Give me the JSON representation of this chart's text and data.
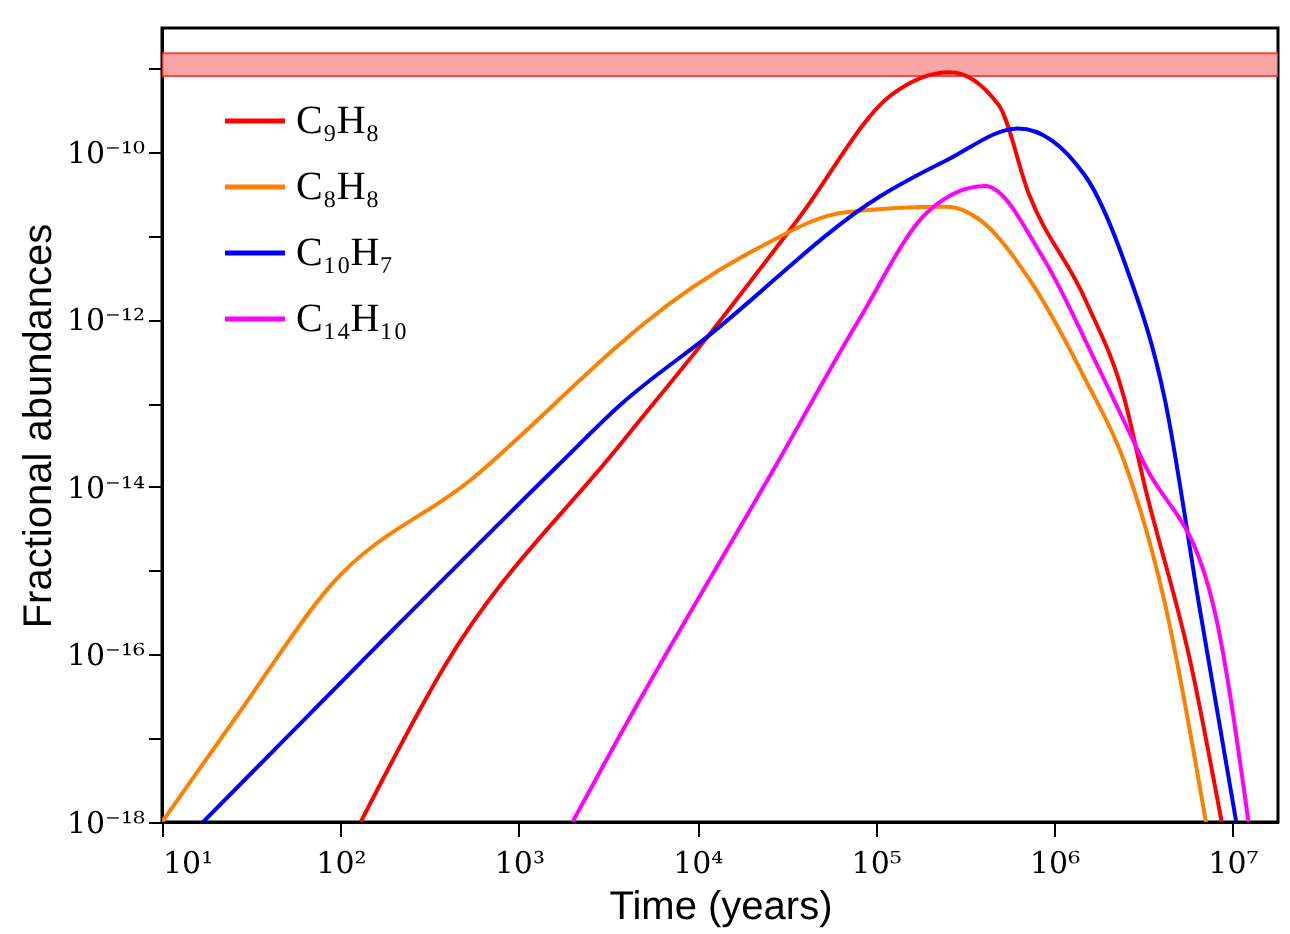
{
  "chart_data": {
    "type": "line",
    "xlabel": "Time (years)",
    "ylabel": "Fractional abundances",
    "log": "xy",
    "legend": "top left",
    "xlim": [
      10,
      18000000
    ],
    "ylim": [
      1e-18,
      3e-09
    ],
    "xticks": [
      {
        "value": 10,
        "label": "10¹"
      },
      {
        "value": 100,
        "label": "10²"
      },
      {
        "value": 1000,
        "label": "10³"
      },
      {
        "value": 10000,
        "label": "10⁴"
      },
      {
        "value": 100000,
        "label": "10⁵"
      },
      {
        "value": 1000000,
        "label": "10⁶"
      },
      {
        "value": 10000000,
        "label": "10⁷"
      }
    ],
    "yticks": [
      {
        "value": 1e-18,
        "label": "10⁻¹⁸"
      },
      {
        "value": 1e-17,
        "label": null
      },
      {
        "value": 1e-16,
        "label": "10⁻¹⁶"
      },
      {
        "value": 1e-15,
        "label": null
      },
      {
        "value": 1e-14,
        "label": "10⁻¹⁴"
      },
      {
        "value": 1e-13,
        "label": null
      },
      {
        "value": 1e-12,
        "label": "10⁻¹²"
      },
      {
        "value": 1e-11,
        "label": null
      },
      {
        "value": 1e-10,
        "label": "10⁻¹⁰"
      },
      {
        "value": 1e-09,
        "label": null
      }
    ],
    "bands": [
      {
        "axis": "y",
        "from": 8e-10,
        "to": 1.5e-09,
        "color": "#fa9c9c"
      }
    ],
    "series": [
      {
        "name": "C₉H₈",
        "color": "#ff0000",
        "x": [
          130,
          380,
          3700,
          11500,
          37000,
          123000,
          260000,
          490000,
          720000,
          1500000,
          2500000,
          3200000,
          5900000,
          8700000
        ],
        "values": [
          1e-18,
          7e-17,
          3.2e-14,
          6.3e-13,
          1.6e-11,
          4.8e-10,
          8.9e-10,
          3.6e-10,
          3.2e-11,
          1.7e-12,
          1.05e-13,
          1.1e-14,
          7e-17,
          1e-18
        ]
      },
      {
        "name": "C₈H₈",
        "color": "#ff8000",
        "x": [
          10,
          27,
          89,
          550,
          3700,
          4900,
          22000,
          68000,
          250000,
          390000,
          720000,
          1500000,
          2500000,
          4200000,
          7100000
        ],
        "values": [
          1e-18,
          2e-17,
          6.8e-16,
          1.26e-14,
          5.1e-13,
          8.5e-13,
          7.1e-12,
          1.9e-11,
          2.2e-11,
          1.5e-11,
          3.1e-12,
          1.9e-13,
          1.9e-14,
          3.9e-16,
          1e-18
        ]
      },
      {
        "name": "C₁₀H₇",
        "color": "#0000ff",
        "x": [
          17,
          160,
          1700,
          3700,
          11500,
          105000,
          250000,
          630000,
          1500000,
          2500000,
          4200000,
          6500000,
          10500000
        ],
        "values": [
          1e-18,
          1.26e-16,
          1.9e-14,
          9.5e-14,
          6.3e-13,
          2.9e-11,
          7.9e-11,
          1.9e-10,
          5.1e-11,
          4.6e-12,
          1.05e-13,
          3.9e-16,
          1e-18
        ]
      },
      {
        "name": "C₁₄H₁₀",
        "color": "#ff00ff",
        "x": [
          2000,
          3700,
          28000,
          81000,
          195000,
          410000,
          870000,
          1700000,
          3200000,
          7800000,
          12300000
        ],
        "values": [
          1e-18,
          1.1e-17,
          1.9e-14,
          1e-12,
          1.9e-11,
          3.9e-11,
          5.4e-12,
          3.2e-13,
          1.9e-14,
          3.9e-16,
          1e-18
        ]
      }
    ]
  }
}
